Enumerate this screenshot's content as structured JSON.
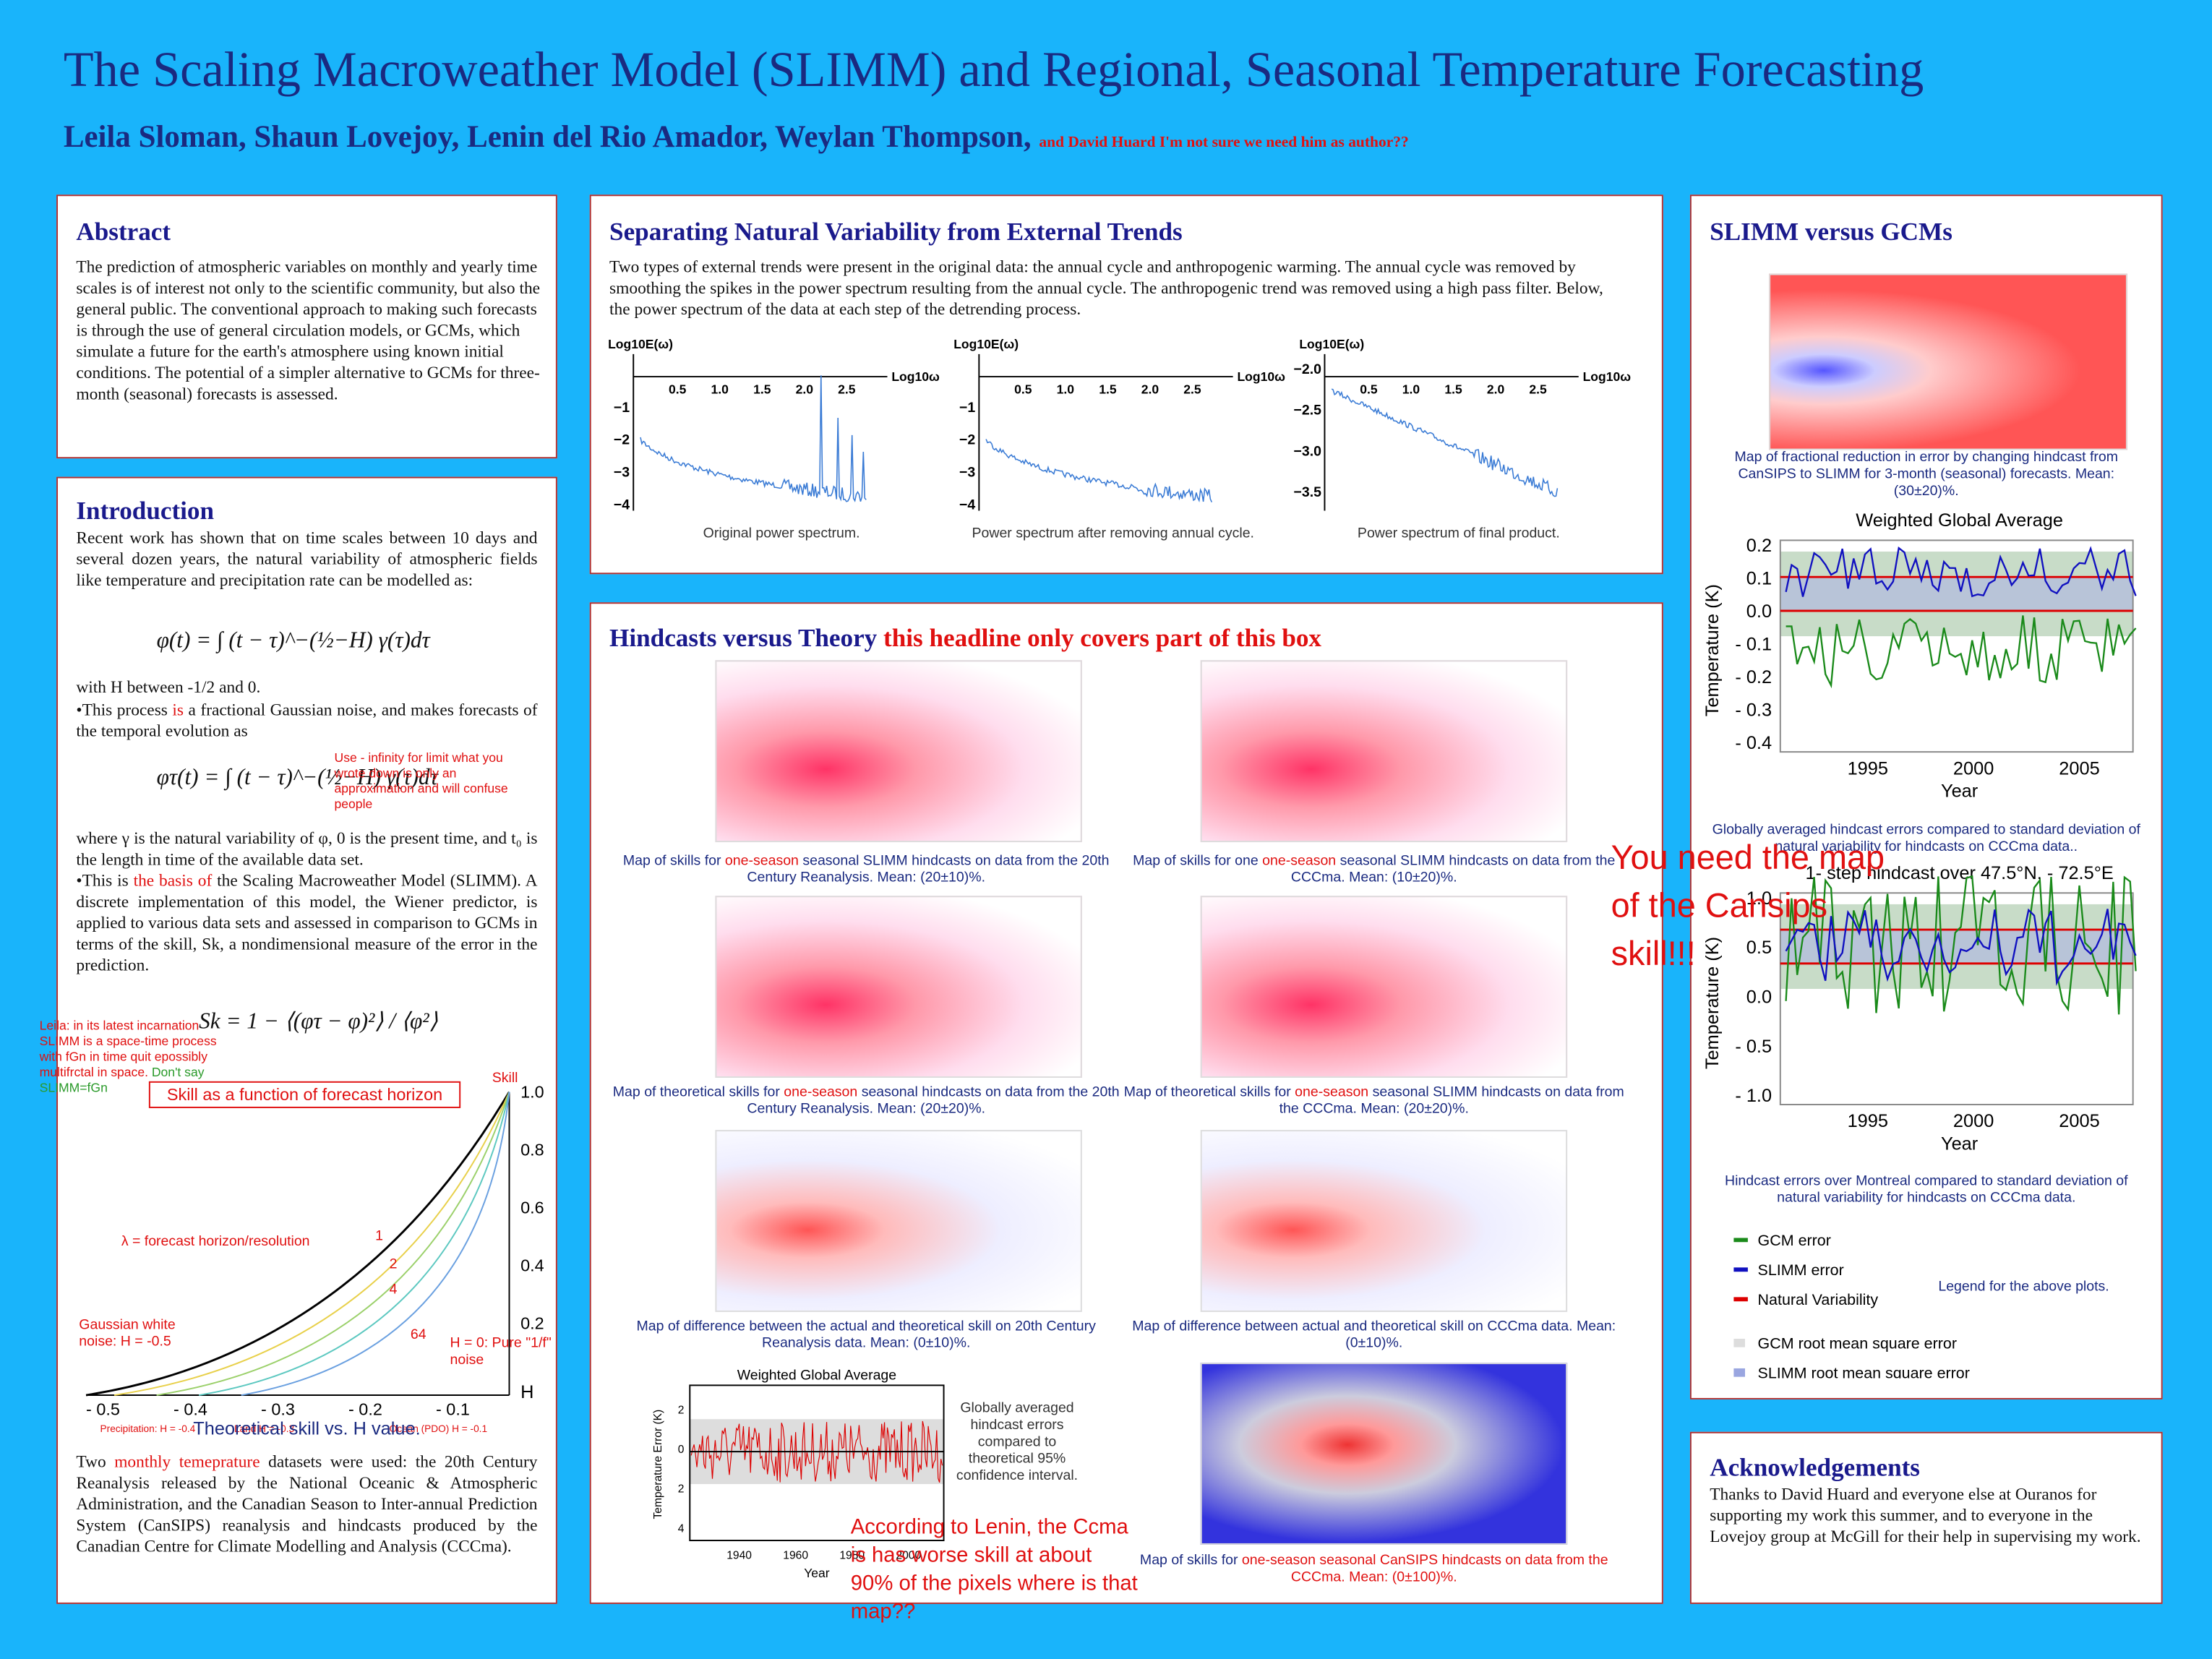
{
  "title": "The Scaling Macroweather Model (SLIMM) and Regional, Seasonal Temperature Forecasting",
  "authors": "Leila Sloman, Shaun Lovejoy, Lenin del Rio Amador, Weylan Thompson,",
  "author_note": "and David Huard I'm not sure we need him as author??",
  "abstract": {
    "heading": "Abstract",
    "text": "The prediction of atmospheric variables on monthly and yearly time scales is of interest not only to the scientific community, but also the general public.  The conventional approach to making such forecasts is through the use of general circulation models, or GCMs, which simulate a future for the earth's atmosphere using known initial conditions. The  potential of a simpler alternative to GCMs for three-month (seasonal) forecasts is assessed."
  },
  "introduction": {
    "heading": "Introduction",
    "p1": "Recent work has shown that on time scales between 10 days and several dozen years, the natural variability of atmospheric fields like temperature and precipitation rate can be modelled as:",
    "eq1": "φ(t) = ∫ (t − τ)^−(½−H) γ(τ)dτ",
    "p2": "with H between -1/2 and 0.",
    "p3a": "•This process ",
    "p3b": "is",
    "p3c": " a fractional Gaussian noise, and makes forecasts of the temporal evolution as",
    "eq2": "φτ(t) = ∫ (t − τ)^−(½−H) γ(τ)dτ",
    "p4": "where γ is the natural variability of φ, 0 is the present time, and t₀ is the length in time of the available data set.",
    "p5a": "•This is ",
    "p5b": "the basis of",
    "p5c": " the Scaling Macroweather Model (SLIMM). A discrete implementation of this model, the Wiener predictor, is applied to various data sets and assessed in comparison to GCMs in terms of the skill, Sk, a nondimensional measure of the error in the prediction.",
    "eq3": "Sk = 1 − ⟨(φτ − φ)²⟩ / ⟨φ²⟩",
    "p6a": "Two ",
    "p6b": "monthly temeprature",
    "p6c": " datasets were used: the 20th Century Reanalysis released by the National Oceanic & Atmospheric Administration, and the Canadian Season to Inter-annual Prediction System (CanSIPS) reanalysis and hindcasts produced by the Canadian Centre for Climate Modelling and Analysis (CCCma)."
  },
  "skill_plot": {
    "title": "Skill as a function of forecast horizon",
    "ylabel": "Skill",
    "yticks": [
      "1.0",
      "0.8",
      "0.6",
      "0.4",
      "0.2"
    ],
    "xticks": [
      "- 0.5",
      "- 0.4",
      "- 0.3",
      "- 0.2",
      "- 0.1"
    ],
    "xlabel": "H",
    "lambda": "λ = forecast horizon/resolution",
    "curves": [
      "1",
      "2",
      "4",
      "64"
    ],
    "gauss": "Gaussian white noise: H = -0.5",
    "pure": "H = 0: Pure \"1/f\" noise",
    "notes": [
      "Precipitation: H = -0.4",
      "Land H = -0.3",
      "Ocean (PDO) H = -0.1"
    ],
    "caption": "Theoretical skill vs. H value."
  },
  "separating": {
    "heading": "Separating Natural Variability from External Trends",
    "text": "Two types of external trends were present in the original data: the annual cycle and anthropogenic warming.  The annual cycle was removed by smoothing the spikes in the power spectrum resulting from the annual cycle.  The anthropogenic trend was removed using a high pass filter.  Below, the power spectrum of the data at each step of the detrending process.",
    "ylabel": "Log10E(ω)",
    "xlabel": "Log10ω",
    "xticks": [
      "0.5",
      "1.0",
      "1.5",
      "2.0",
      "2.5"
    ],
    "yticks_a": [
      "−1",
      "−2",
      "−3",
      "−4"
    ],
    "yticks_c": [
      "−2.0",
      "−2.5",
      "−3.0",
      "−3.5"
    ],
    "captions": [
      "Original power spectrum.",
      "Power spectrum after removing annual cycle.",
      "Power spectrum of final product."
    ]
  },
  "hindcasts": {
    "heading": "Hindcasts versus Theory",
    "heading_note": "this headline only covers part of this box",
    "captions": [
      [
        "Map of skills for ",
        "one-season",
        " seasonal SLIMM hindcasts on data from the 20th Century Reanalysis. Mean: (20±10)%."
      ],
      [
        "Map of skills for one ",
        "one-season",
        "  seasonal SLIMM hindcasts on data from the CCCma.  Mean: (10±20)%."
      ],
      [
        "Map of theoretical skills for ",
        "one-season",
        "  seasonal hindcasts on data from the 20th Century Reanalysis.  Mean: (20±20)%."
      ],
      [
        "Map of theoretical skills for ",
        "one-season",
        "  seasonal SLIMM hindcasts on data from the CCCma.  Mean: (20±20)%."
      ],
      [
        "Map of difference between the actual and theoretical skill on 20th Century Reanalysis data.  Mean: (0±10)%.",
        "",
        ""
      ],
      [
        "Map of difference between actual and theoretical skill on CCCma  data.  Mean: (0±10)%.",
        "",
        ""
      ],
      [
        "Map of skills for ",
        "one-season seasonal CanSIPS hindcasts on data from the CCCma.  Mean: (0±100)%.",
        ""
      ]
    ],
    "plot_title": "Weighted Global Average",
    "plot_ylabel": "Temperature Error (K)",
    "plot_xlabel": "Year",
    "plot_xticks": [
      "1940",
      "1960",
      "1980",
      "2000"
    ],
    "plot_yticks": [
      "2",
      "0",
      "2",
      "4"
    ],
    "plot_caption": "Globally averaged hindcast errors compared to theoretical 95% confidence interval."
  },
  "gcm": {
    "heading": "SLIMM versus GCMs",
    "map_caption": "Map of fractional reduction in error by changing hindcast from CanSIPS to SLIMM for 3-month (seasonal) forecasts. Mean: (30±20)%.",
    "plot1_title": "Weighted Global Average",
    "ylabel": "Temperature (K)",
    "xlabel": "Year",
    "plot1_yticks": [
      "0.2",
      "0.1",
      "0.0",
      "- 0.1",
      "- 0.2",
      "- 0.3",
      "- 0.4"
    ],
    "xticks": [
      "1995",
      "2000",
      "2005"
    ],
    "plot1_caption": "Globally averaged hindcast errors compared to standard deviation of natural variability for hindcasts on CCCma data..",
    "plot2_title": "1- step hindcast over 47.5°N, - 72.5°E",
    "plot2_yticks": [
      "1.0",
      "0.5",
      "0.0",
      "- 0.5",
      "- 1.0"
    ],
    "plot2_caption": "Hindcast errors over Montreal compared to standard deviation of natural variability for hindcasts on CCCma data.",
    "legend": [
      "GCM error",
      "SLIMM error",
      "Natural Variability",
      "GCM root mean square error",
      "SLIMM root mean square error"
    ],
    "legend_note": "Legend for the above plots."
  },
  "acknowledgements": {
    "heading": "Acknowledgements",
    "text": "Thanks to David Huard and everyone else at Ouranos for supporting my work this summer, and to everyone in the Lovejoy group at McGill for their help in supervising my work."
  },
  "comments": {
    "limit": "Use - infinity for limit what you wrote down is only an approximation and will confuse people",
    "leila_a": "Leila: in its latest incarnation SLIMM is a space-time process with fGn in time quit epossibly multifrctal in space. ",
    "leila_b": "Don't say SLIMM=fGn",
    "cansips": "You need the map of the Cansips skill!!!",
    "lenin": "According to Lenin, the Ccma is has worse skill at about 90% of the pixels where is that map??"
  }
}
